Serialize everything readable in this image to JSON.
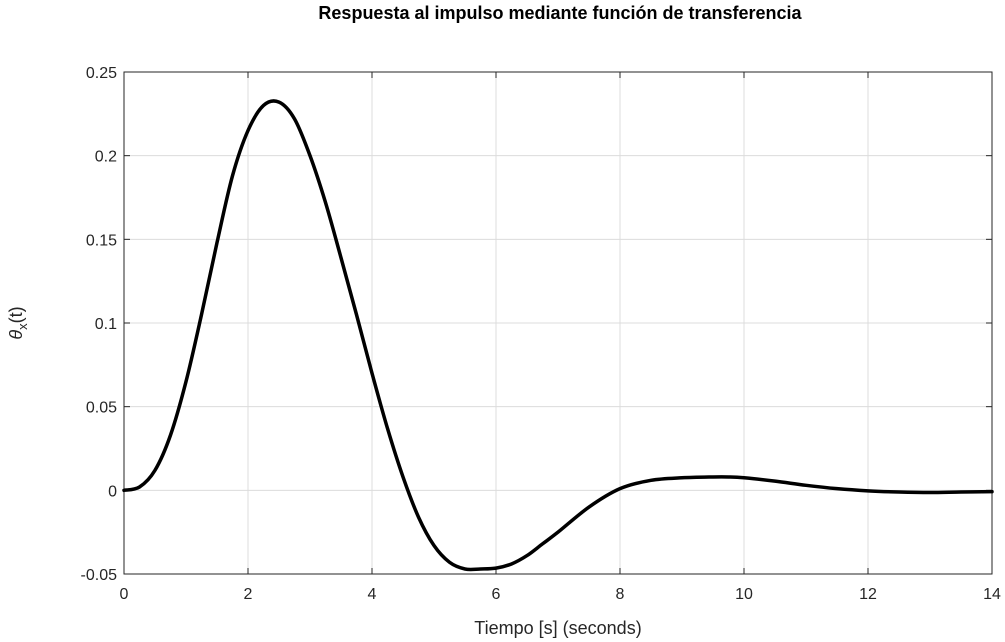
{
  "chart_data": {
    "type": "line",
    "title": "Respuesta al impulso mediante función de transferencia",
    "xlabel": "Tiempo [s] (seconds)",
    "ylabel": {
      "symbol": "θ",
      "subscript": "x",
      "suffix": "(t)"
    },
    "xlim": [
      0,
      14
    ],
    "ylim": [
      -0.05,
      0.25
    ],
    "x_ticks": [
      0,
      2,
      4,
      6,
      8,
      10,
      12,
      14
    ],
    "x_tick_labels": [
      "0",
      "2",
      "4",
      "6",
      "8",
      "10",
      "12",
      "14"
    ],
    "y_ticks": [
      -0.05,
      0,
      0.05,
      0.1,
      0.15,
      0.2,
      0.25
    ],
    "y_tick_labels": [
      "-0.05",
      "0",
      "0.05",
      "0.1",
      "0.15",
      "0.2",
      "0.25"
    ],
    "grid": true,
    "series": [
      {
        "color": "#000000",
        "x": [
          0,
          0.25,
          0.5,
          0.75,
          1.0,
          1.25,
          1.5,
          1.75,
          2.0,
          2.25,
          2.5,
          2.75,
          3.0,
          3.25,
          3.5,
          3.75,
          4.0,
          4.25,
          4.5,
          4.75,
          5.0,
          5.25,
          5.5,
          5.75,
          6.0,
          6.25,
          6.5,
          6.75,
          7.0,
          7.5,
          8.0,
          8.5,
          9.0,
          9.5,
          9.75,
          10.0,
          10.5,
          11.0,
          11.5,
          12.0,
          12.5,
          13.0,
          13.5,
          14.0
        ],
        "values": [
          0,
          0.002,
          0.012,
          0.033,
          0.065,
          0.105,
          0.148,
          0.188,
          0.215,
          0.23,
          0.232,
          0.222,
          0.2,
          0.172,
          0.139,
          0.105,
          0.07,
          0.037,
          0.008,
          -0.016,
          -0.033,
          -0.043,
          -0.047,
          -0.047,
          -0.0465,
          -0.044,
          -0.039,
          -0.032,
          -0.025,
          -0.01,
          0.001,
          0.006,
          0.0075,
          0.008,
          0.008,
          0.0075,
          0.0055,
          0.003,
          0.001,
          -0.0003,
          -0.001,
          -0.0013,
          -0.001,
          -0.0008
        ]
      }
    ]
  }
}
